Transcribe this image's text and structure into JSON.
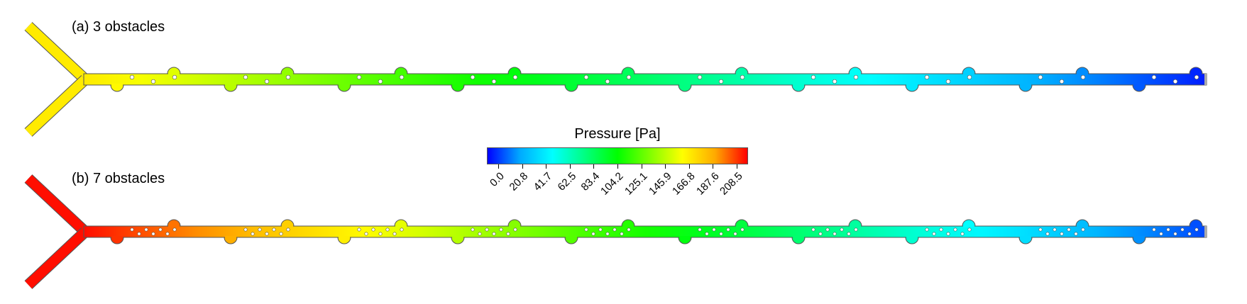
{
  "panels": {
    "a": {
      "label": "(a) 3 obstacles",
      "obstacles_per_group": 3
    },
    "b": {
      "label": "(b) 7 obstacles",
      "obstacles_per_group": 7
    }
  },
  "colorbar": {
    "title": "Pressure [Pa]",
    "min": 0.0,
    "max": 208.5,
    "ticks": [
      "0.0",
      "20.8",
      "41.7",
      "62.5",
      "83.4",
      "104.2",
      "125.1",
      "145.9",
      "166.8",
      "187.6",
      "208.5"
    ],
    "colormap": [
      "#0000ff",
      "#00aaff",
      "#00ffff",
      "#00ff80",
      "#00ff00",
      "#80ff00",
      "#ffff00",
      "#ffaa00",
      "#ff0000"
    ]
  },
  "colors": {
    "outline": "#555555",
    "obstacle_fill": "#ffffff"
  }
}
